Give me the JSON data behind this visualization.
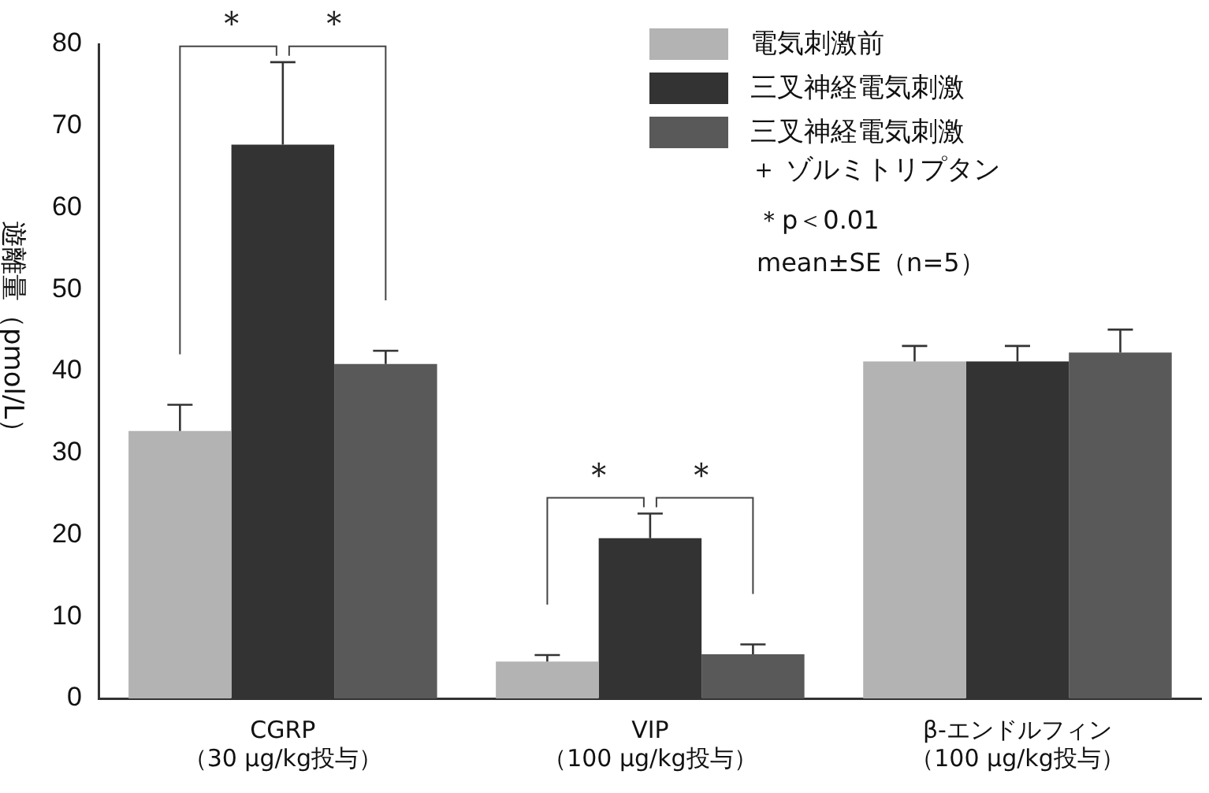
{
  "chart_data": {
    "type": "bar",
    "ylabel": "遊離量（pmol/L）",
    "categories": [
      "CGRP（30 μg/kg投与）",
      "VIP（100 μg/kg投与）",
      "β-エンドルフィン（100 μg/kg投与）"
    ],
    "series": [
      {
        "name": "電気刺激前",
        "color": "#b3b3b3",
        "values": [
          32.7,
          4.5,
          41.2
        ],
        "errors": [
          3.2,
          0.8,
          1.9
        ]
      },
      {
        "name": "三叉神経電気刺激",
        "color": "#333333",
        "values": [
          67.7,
          19.6,
          41.2
        ],
        "errors": [
          10.1,
          3.0,
          1.9
        ]
      },
      {
        "name": "三叉神経電気刺激＋ ゾルミトリプタン",
        "color": "#595959",
        "values": [
          40.9,
          5.4,
          42.3
        ],
        "errors": [
          1.6,
          1.2,
          2.8
        ]
      }
    ],
    "ylim": [
      0,
      80
    ],
    "yticks": [
      0,
      10,
      20,
      30,
      40,
      50,
      60,
      70,
      80
    ],
    "grid": false,
    "legend": "top right",
    "annotations": [
      "＊",
      "＊",
      "＊",
      "＊",
      "＊p＜0.01",
      "mean±SE（n=5）"
    ]
  }
}
